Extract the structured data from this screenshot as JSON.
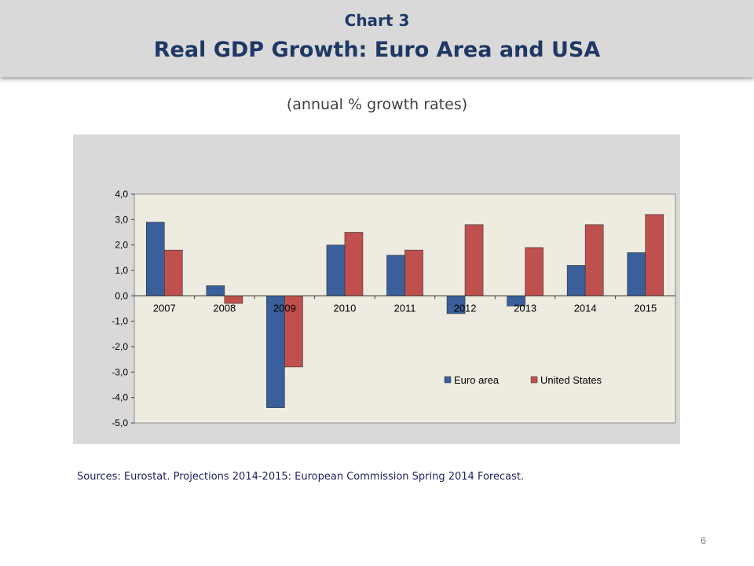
{
  "header": {
    "chart_number": "Chart 3",
    "title": "Real GDP Growth: Euro Area and USA"
  },
  "subtitle": "(annual % growth rates)",
  "source": "Sources: Eurostat. Projections 2014-2015: European Commission Spring 2014 Forecast.",
  "page_number": "6",
  "colors": {
    "euro": "#3a5f9a",
    "us": "#c0504d",
    "plot_bg": "#eeece1",
    "outer_bg": "#d9d9d9"
  },
  "chart_data": {
    "type": "bar",
    "categories": [
      "2007",
      "2008",
      "2009",
      "2010",
      "2011",
      "2012",
      "2013",
      "2014",
      "2015"
    ],
    "series": [
      {
        "name": "Euro area",
        "values": [
          2.9,
          0.4,
          -4.4,
          2.0,
          1.6,
          -0.7,
          -0.4,
          1.2,
          1.7
        ]
      },
      {
        "name": "United States",
        "values": [
          1.8,
          -0.3,
          -2.8,
          2.5,
          1.8,
          2.8,
          1.9,
          2.8,
          3.2
        ]
      }
    ],
    "ylim": [
      -5,
      4
    ],
    "yticks": [
      "4,0",
      "3,0",
      "2,0",
      "1,0",
      "0,0",
      "-1,0",
      "-2,0",
      "-3,0",
      "-4,0",
      "-5,0"
    ],
    "legend": "bottom-right",
    "grid": false
  }
}
